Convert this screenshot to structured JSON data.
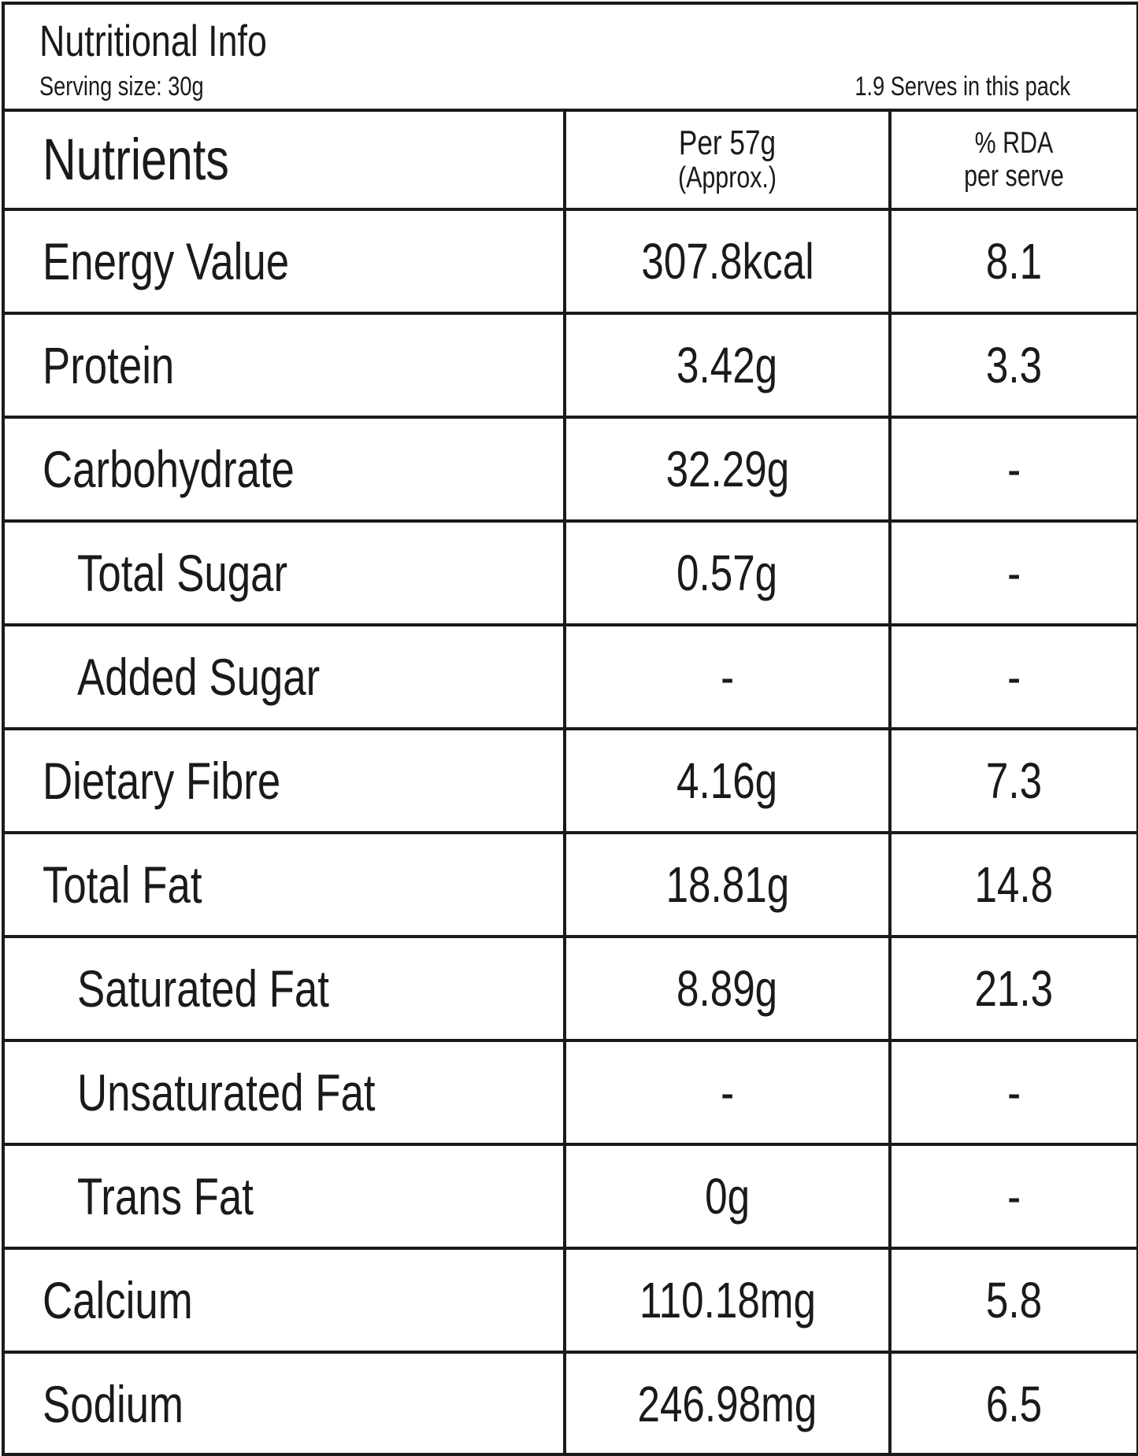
{
  "header": {
    "title": "Nutritional Info",
    "serving_size": "Serving  size: 30g",
    "serves": "1.9 Serves in this pack"
  },
  "columns": {
    "nutrients": "Nutrients",
    "per_line1": "Per 57g",
    "per_line2": "(Approx.)",
    "rda_line1": "% RDA",
    "rda_line2": "per serve"
  },
  "rows": [
    {
      "name": "Energy Value",
      "per": "307.8kcal",
      "rda": "8.1",
      "sub": false
    },
    {
      "name": "Protein",
      "per": "3.42g",
      "rda": "3.3",
      "sub": false
    },
    {
      "name": "Carbohydrate",
      "per": "32.29g",
      "rda": "-",
      "sub": false
    },
    {
      "name": "Total Sugar",
      "per": "0.57g",
      "rda": "-",
      "sub": true
    },
    {
      "name": "Added Sugar",
      "per": "-",
      "rda": "-",
      "sub": true
    },
    {
      "name": "Dietary Fibre",
      "per": "4.16g",
      "rda": "7.3",
      "sub": false
    },
    {
      "name": "Total Fat",
      "per": "18.81g",
      "rda": "14.8",
      "sub": false
    },
    {
      "name": "Saturated Fat",
      "per": "8.89g",
      "rda": "21.3",
      "sub": true
    },
    {
      "name": "Unsaturated Fat",
      "per": "-",
      "rda": "-",
      "sub": true
    },
    {
      "name": "Trans Fat",
      "per": "0g",
      "rda": "-",
      "sub": true
    },
    {
      "name": "Calcium",
      "per": "110.18mg",
      "rda": "5.8",
      "sub": false
    },
    {
      "name": "Sodium",
      "per": "246.98mg",
      "rda": "6.5",
      "sub": false
    }
  ]
}
